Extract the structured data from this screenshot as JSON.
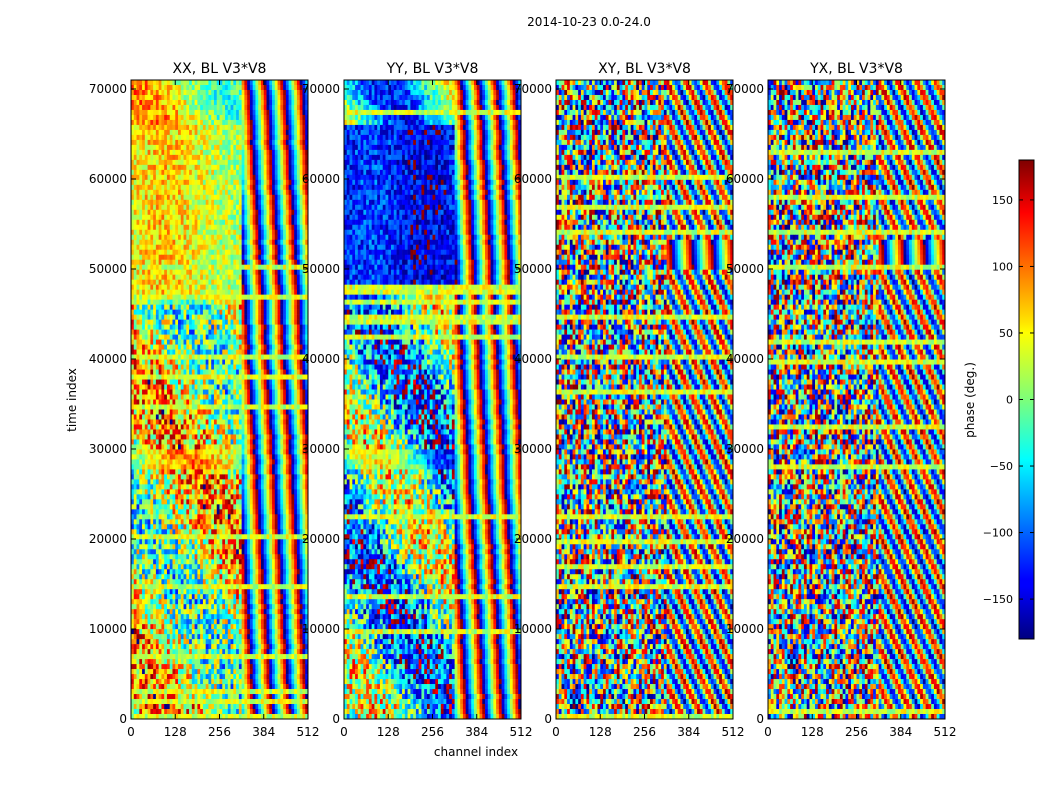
{
  "chart_data": {
    "type": "heatmap",
    "title": "2014-10-23 0.0-24.0",
    "xlabel": "channel index",
    "ylabel": "time index",
    "xlim": [
      0,
      512
    ],
    "ylim": [
      0,
      71000
    ],
    "x_ticks": [
      0,
      128,
      256,
      384,
      512
    ],
    "y_ticks": [
      0,
      10000,
      20000,
      30000,
      40000,
      50000,
      60000,
      70000
    ],
    "panels": [
      {
        "title": "XX, BL V3*V8",
        "polarization": "XX",
        "baseline": "V3*V8"
      },
      {
        "title": "YY, BL V3*V8",
        "polarization": "YY",
        "baseline": "V3*V8"
      },
      {
        "title": "XY, BL V3*V8",
        "polarization": "XY",
        "baseline": "V3*V8"
      },
      {
        "title": "YX, BL V3*V8",
        "polarization": "YX",
        "baseline": "V3*V8"
      }
    ],
    "colorbar": {
      "label": "phase (deg.)",
      "range": [
        -180,
        180
      ],
      "ticks": [
        -150,
        -100,
        -50,
        0,
        50,
        100,
        150
      ],
      "colormap": "jet"
    }
  }
}
